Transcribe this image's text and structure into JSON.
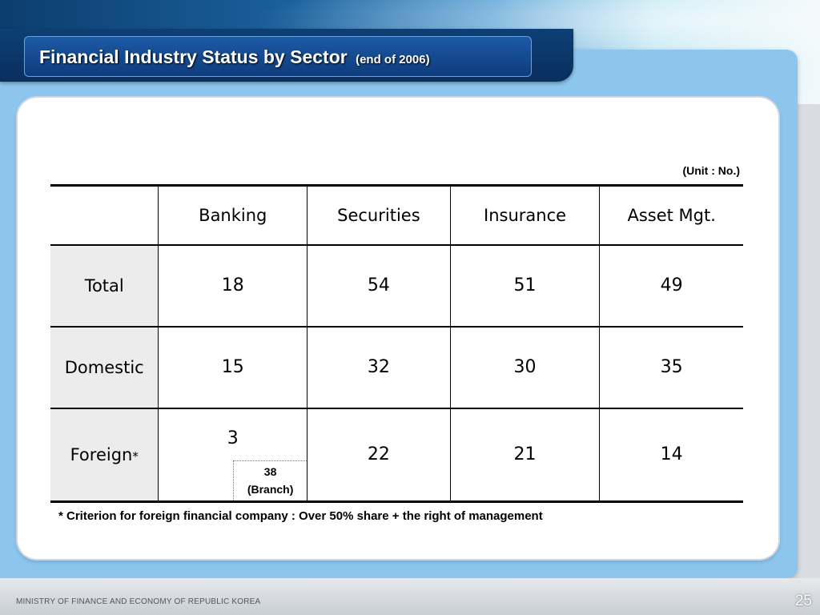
{
  "slide": {
    "title": "Financial Industry Status by Sector",
    "title_suffix": "(end of 2006)",
    "unit": "(Unit : No.)",
    "footnote": "* Criterion for foreign financial company : Over 50% share + the right of management",
    "footer_org": "MINISTRY OF FINANCE AND ECONOMY OF REPUBLIC KOREA",
    "page_number": "25"
  },
  "table": {
    "columns": [
      "Banking",
      "Securities",
      "Insurance",
      "Asset Mgt."
    ],
    "rows": [
      {
        "label": "Total",
        "values": [
          "18",
          "54",
          "51",
          "49"
        ]
      },
      {
        "label": "Domestic",
        "values": [
          "15",
          "32",
          "30",
          "35"
        ]
      },
      {
        "label": "Foreign",
        "label_mark": "*",
        "values": [
          "3",
          "22",
          "21",
          "14"
        ]
      }
    ],
    "branch_note": {
      "value": "38",
      "label": "(Branch)"
    }
  }
}
